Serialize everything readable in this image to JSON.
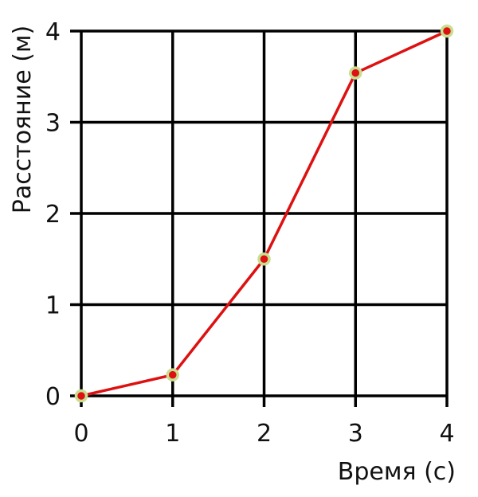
{
  "chart_data": {
    "type": "line",
    "x_label": "Время (с)",
    "y_label": "Расстояние (м)",
    "x": [
      0,
      1,
      2,
      3,
      4
    ],
    "series": [
      {
        "color": "#dd1111",
        "marker_edge_color": "#c9df8f",
        "values": [
          0,
          0.23,
          1.5,
          3.54,
          4
        ]
      }
    ],
    "xlim": [
      0,
      4
    ],
    "xticks": [
      0,
      1,
      2,
      3,
      4
    ],
    "ylim": [
      0,
      4
    ],
    "yticks": [
      0,
      1,
      2,
      3,
      4
    ],
    "grid": true
  }
}
